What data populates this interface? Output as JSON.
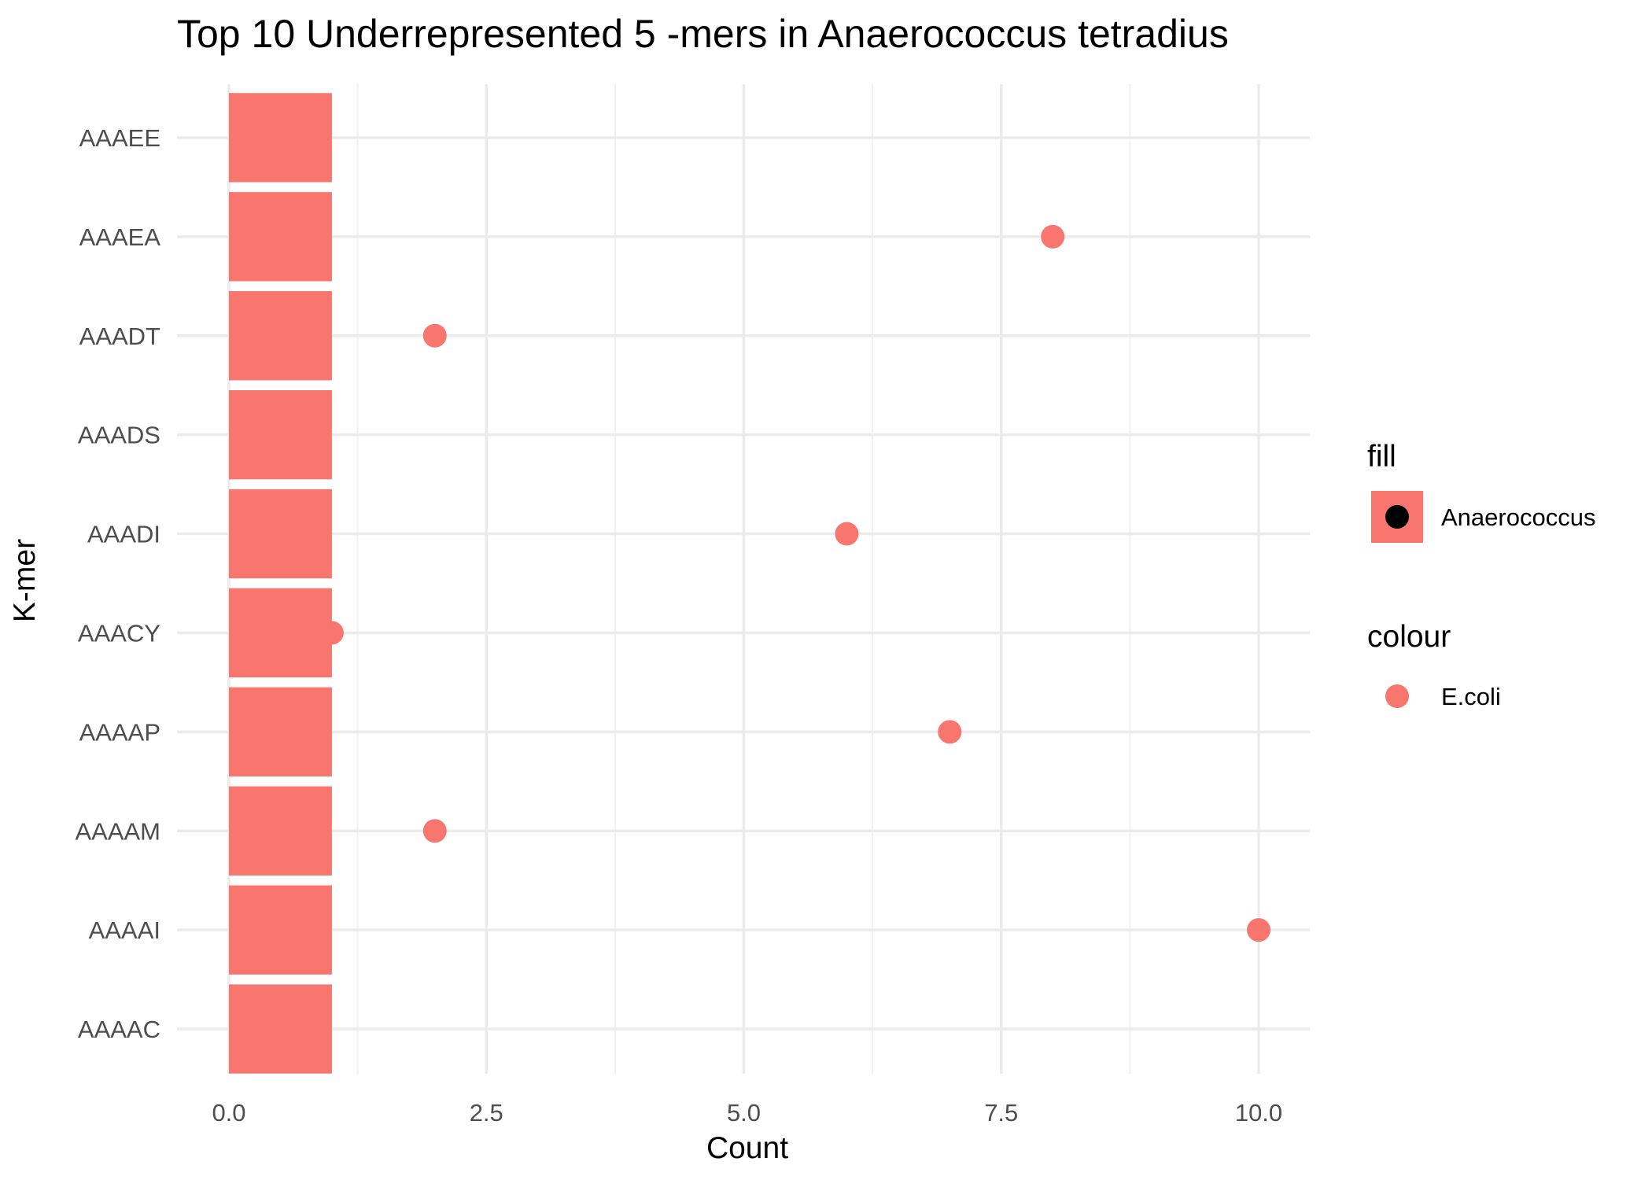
{
  "chart_data": {
    "type": "bar",
    "title": "Top 10 Underrepresented 5 -mers in Anaerococcus tetradius",
    "xlabel": "Count",
    "ylabel": "K-mer",
    "xlim": [
      0,
      10.5
    ],
    "x_ticks": [
      "0.0",
      "2.5",
      "5.0",
      "7.5",
      "10.0"
    ],
    "x_tick_values": [
      0,
      2.5,
      5,
      7.5,
      10
    ],
    "orientation": "horizontal",
    "grid": true,
    "categories": [
      "AAAAC",
      "AAAAI",
      "AAAAM",
      "AAAAP",
      "AAACY",
      "AAADI",
      "AAADS",
      "AAADT",
      "AAAEA",
      "AAAEE"
    ],
    "series": [
      {
        "name": "Anaerococcus",
        "mark": "bar",
        "color": "#F8766D",
        "values": [
          1,
          1,
          1,
          1,
          1,
          1,
          1,
          1,
          1,
          1
        ]
      },
      {
        "name": "E.coli",
        "mark": "point",
        "color": "#F8766D",
        "values": [
          null,
          10,
          2,
          7,
          1,
          6,
          null,
          2,
          8,
          null
        ]
      }
    ],
    "legend": {
      "placement": "right",
      "groups": [
        {
          "title": "fill",
          "label": "Anaerococcus"
        },
        {
          "title": "colour",
          "label": "E.coli"
        }
      ]
    }
  }
}
